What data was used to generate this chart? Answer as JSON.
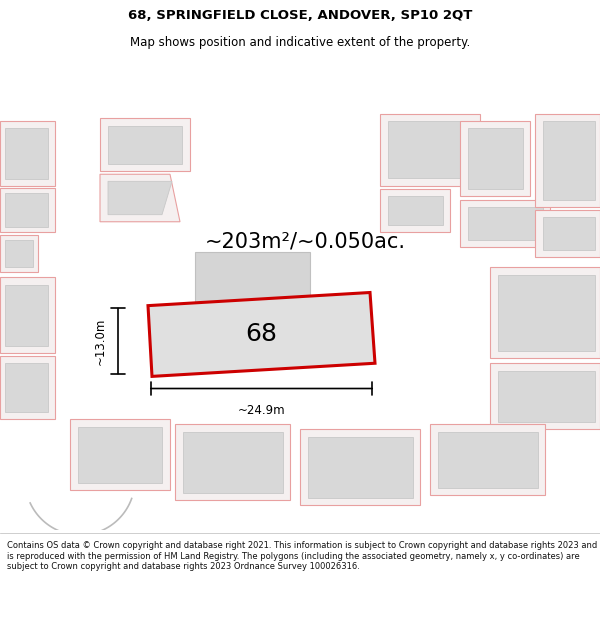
{
  "title_line1": "68, SPRINGFIELD CLOSE, ANDOVER, SP10 2QT",
  "title_line2": "Map shows position and indicative extent of the property.",
  "area_text": "~203m²/~0.050ac.",
  "width_label": "~24.9m",
  "height_label": "~13.0m",
  "plot_number": "68",
  "footer_text": "Contains OS data © Crown copyright and database right 2021. This information is subject to Crown copyright and database rights 2023 and is reproduced with the permission of HM Land Registry. The polygons (including the associated geometry, namely x, y co-ordinates) are subject to Crown copyright and database rights 2023 Ordnance Survey 100026316.",
  "bg_color": "#f0f0f0",
  "plot_fill": "#e0e0e0",
  "plot_edge": "#cc0000",
  "bld_fill": "#d8d8d8",
  "bld_edge": "#c8c8c8",
  "pink_edge": "#e8a0a0",
  "pink_fill": "#f5f0f0",
  "title_fontsize": 9.5,
  "subtitle_fontsize": 8.5,
  "area_fontsize": 15,
  "plot_num_fontsize": 18,
  "dim_fontsize": 8.5,
  "footer_fontsize": 6.0
}
